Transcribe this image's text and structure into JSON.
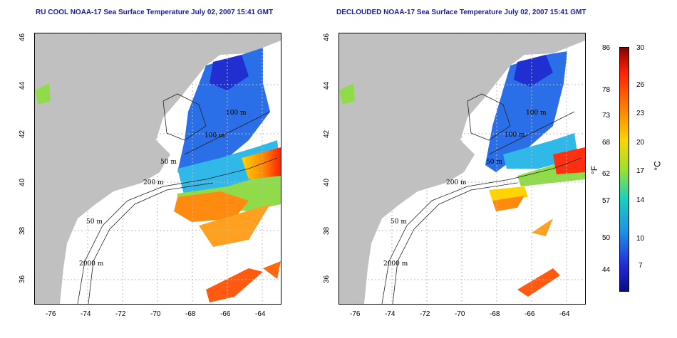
{
  "titles": {
    "left": "RU COOL NOAA-17 Sea Surface Temperature July 02, 2007 15:41 GMT",
    "right": "DECLOUDED NOAA-17 Sea Surface Temperature July 02, 2007 15:41 GMT"
  },
  "x_ticks": [
    "-76",
    "-74",
    "-72",
    "-70",
    "-68",
    "-66",
    "-64"
  ],
  "y_ticks": [
    "46",
    "44",
    "42",
    "40",
    "38",
    "36"
  ],
  "contour_labels": {
    "left": [
      "100 m",
      "100 m",
      "50 m",
      "200 m",
      "50 m",
      "2000 m"
    ],
    "right": [
      "100 m",
      "100 m",
      "50 m",
      "200 m",
      "50 m",
      "2000 m"
    ]
  },
  "colorbar": {
    "fahrenheit": [
      "86",
      "78",
      "73",
      "68",
      "62",
      "57",
      "50",
      "44"
    ],
    "celsius": [
      "30",
      "26",
      "23",
      "20",
      "17",
      "14",
      "10",
      "7"
    ],
    "unit_f": "°F",
    "unit_c": "°C"
  },
  "colors": {
    "land": "#c0c0c0",
    "ocean_no_data": "#ffffff",
    "title": "#1a1aa0"
  }
}
